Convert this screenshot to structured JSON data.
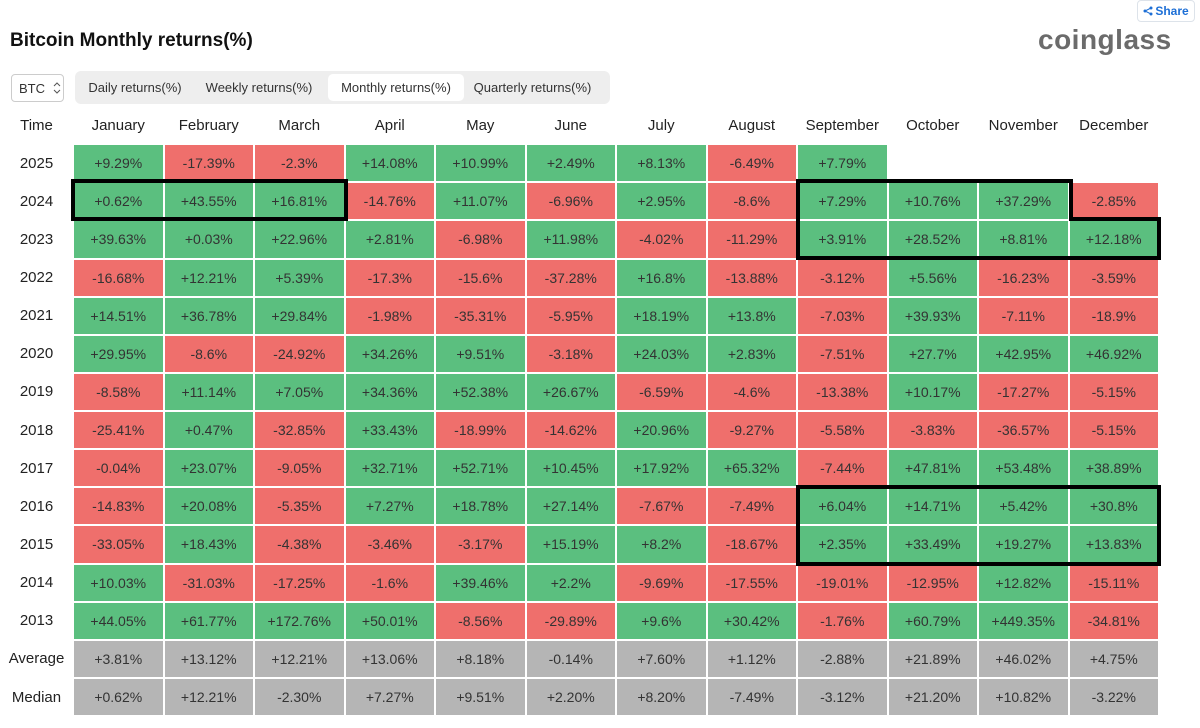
{
  "header": {
    "title": "Bitcoin Monthly returns(%)",
    "logo": "coinglass",
    "share": "Share"
  },
  "controls": {
    "coin": "BTC",
    "tabs": [
      "Daily returns(%)",
      "Weekly returns(%)",
      "Monthly returns(%)",
      "Quarterly returns(%)"
    ],
    "active_tab": 2
  },
  "colors": {
    "positive": "#5bbf7f",
    "negative": "#ef6f6c",
    "summary": "#b5b5b5"
  },
  "table": {
    "columns": [
      "Time",
      "January",
      "February",
      "March",
      "April",
      "May",
      "June",
      "July",
      "August",
      "September",
      "October",
      "November",
      "December"
    ],
    "rows": [
      {
        "label": "2025",
        "cells": [
          "+9.29%",
          "-17.39%",
          "-2.3%",
          "+14.08%",
          "+10.99%",
          "+2.49%",
          "+8.13%",
          "-6.49%",
          "+7.79%"
        ]
      },
      {
        "label": "2024",
        "cells": [
          "+0.62%",
          "+43.55%",
          "+16.81%",
          "-14.76%",
          "+11.07%",
          "-6.96%",
          "+2.95%",
          "-8.6%",
          "+7.29%",
          "+10.76%",
          "+37.29%",
          "-2.85%"
        ]
      },
      {
        "label": "2023",
        "cells": [
          "+39.63%",
          "+0.03%",
          "+22.96%",
          "+2.81%",
          "-6.98%",
          "+11.98%",
          "-4.02%",
          "-11.29%",
          "+3.91%",
          "+28.52%",
          "+8.81%",
          "+12.18%"
        ]
      },
      {
        "label": "2022",
        "cells": [
          "-16.68%",
          "+12.21%",
          "+5.39%",
          "-17.3%",
          "-15.6%",
          "-37.28%",
          "+16.8%",
          "-13.88%",
          "-3.12%",
          "+5.56%",
          "-16.23%",
          "-3.59%"
        ]
      },
      {
        "label": "2021",
        "cells": [
          "+14.51%",
          "+36.78%",
          "+29.84%",
          "-1.98%",
          "-35.31%",
          "-5.95%",
          "+18.19%",
          "+13.8%",
          "-7.03%",
          "+39.93%",
          "-7.11%",
          "-18.9%"
        ]
      },
      {
        "label": "2020",
        "cells": [
          "+29.95%",
          "-8.6%",
          "-24.92%",
          "+34.26%",
          "+9.51%",
          "-3.18%",
          "+24.03%",
          "+2.83%",
          "-7.51%",
          "+27.7%",
          "+42.95%",
          "+46.92%"
        ]
      },
      {
        "label": "2019",
        "cells": [
          "-8.58%",
          "+11.14%",
          "+7.05%",
          "+34.36%",
          "+52.38%",
          "+26.67%",
          "-6.59%",
          "-4.6%",
          "-13.38%",
          "+10.17%",
          "-17.27%",
          "-5.15%"
        ]
      },
      {
        "label": "2018",
        "cells": [
          "-25.41%",
          "+0.47%",
          "-32.85%",
          "+33.43%",
          "-18.99%",
          "-14.62%",
          "+20.96%",
          "-9.27%",
          "-5.58%",
          "-3.83%",
          "-36.57%",
          "-5.15%"
        ]
      },
      {
        "label": "2017",
        "cells": [
          "-0.04%",
          "+23.07%",
          "-9.05%",
          "+32.71%",
          "+52.71%",
          "+10.45%",
          "+17.92%",
          "+65.32%",
          "-7.44%",
          "+47.81%",
          "+53.48%",
          "+38.89%"
        ]
      },
      {
        "label": "2016",
        "cells": [
          "-14.83%",
          "+20.08%",
          "-5.35%",
          "+7.27%",
          "+18.78%",
          "+27.14%",
          "-7.67%",
          "-7.49%",
          "+6.04%",
          "+14.71%",
          "+5.42%",
          "+30.8%"
        ]
      },
      {
        "label": "2015",
        "cells": [
          "-33.05%",
          "+18.43%",
          "-4.38%",
          "-3.46%",
          "-3.17%",
          "+15.19%",
          "+8.2%",
          "-18.67%",
          "+2.35%",
          "+33.49%",
          "+19.27%",
          "+13.83%"
        ]
      },
      {
        "label": "2014",
        "cells": [
          "+10.03%",
          "-31.03%",
          "-17.25%",
          "-1.6%",
          "+39.46%",
          "+2.2%",
          "-9.69%",
          "-17.55%",
          "-19.01%",
          "-12.95%",
          "+12.82%",
          "-15.11%"
        ]
      },
      {
        "label": "2013",
        "cells": [
          "+44.05%",
          "+61.77%",
          "+172.76%",
          "+50.01%",
          "-8.56%",
          "-29.89%",
          "+9.6%",
          "+30.42%",
          "-1.76%",
          "+60.79%",
          "+449.35%",
          "-34.81%"
        ]
      }
    ],
    "summary_rows": [
      {
        "label": "Average",
        "cells": [
          "+3.81%",
          "+13.12%",
          "+12.21%",
          "+13.06%",
          "+8.18%",
          "-0.14%",
          "+7.60%",
          "+1.12%",
          "-2.88%",
          "+21.89%",
          "+46.02%",
          "+4.75%"
        ]
      },
      {
        "label": "Median",
        "cells": [
          "+0.62%",
          "+12.21%",
          "-2.30%",
          "+7.27%",
          "+9.51%",
          "+2.20%",
          "+8.20%",
          "-7.49%",
          "-3.12%",
          "+21.20%",
          "+10.82%",
          "-3.22%"
        ]
      }
    ]
  }
}
